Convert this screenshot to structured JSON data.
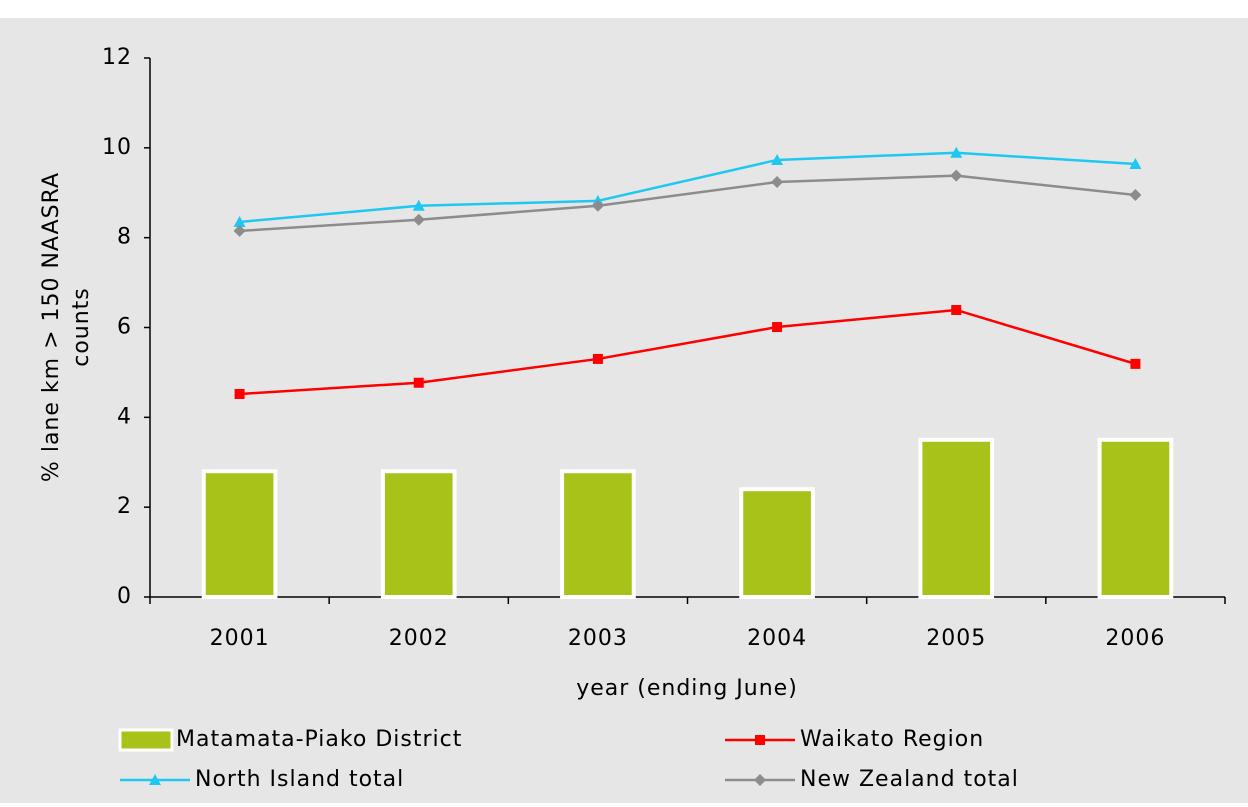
{
  "chart_data": {
    "type": "combo",
    "xlabel": "year (ending June)",
    "ylabel_lines": [
      "% lane km > 150 NAASRA",
      "counts"
    ],
    "categories": [
      "2001",
      "2002",
      "2003",
      "2004",
      "2005",
      "2006"
    ],
    "ylim": [
      0,
      12
    ],
    "yticks": [
      0,
      2,
      4,
      6,
      8,
      10,
      12
    ],
    "series": [
      {
        "name": "Matamata-Piako District",
        "type": "bar",
        "color": "#a9c21a",
        "values": [
          2.8,
          2.8,
          2.8,
          2.4,
          3.5,
          3.5
        ]
      },
      {
        "name": "Waikato Region",
        "type": "line",
        "marker": "square",
        "color": "#ff0000",
        "values": [
          4.52,
          4.77,
          5.3,
          6.01,
          6.39,
          5.19
        ]
      },
      {
        "name": "North Island total",
        "type": "line",
        "marker": "triangle",
        "color": "#1ec8f0",
        "values": [
          8.35,
          8.71,
          8.82,
          9.73,
          9.89,
          9.64
        ]
      },
      {
        "name": "New Zealand total",
        "type": "line",
        "marker": "diamond",
        "color": "#8c8c8c",
        "values": [
          8.15,
          8.4,
          8.71,
          9.24,
          9.38,
          8.95
        ]
      }
    ]
  }
}
